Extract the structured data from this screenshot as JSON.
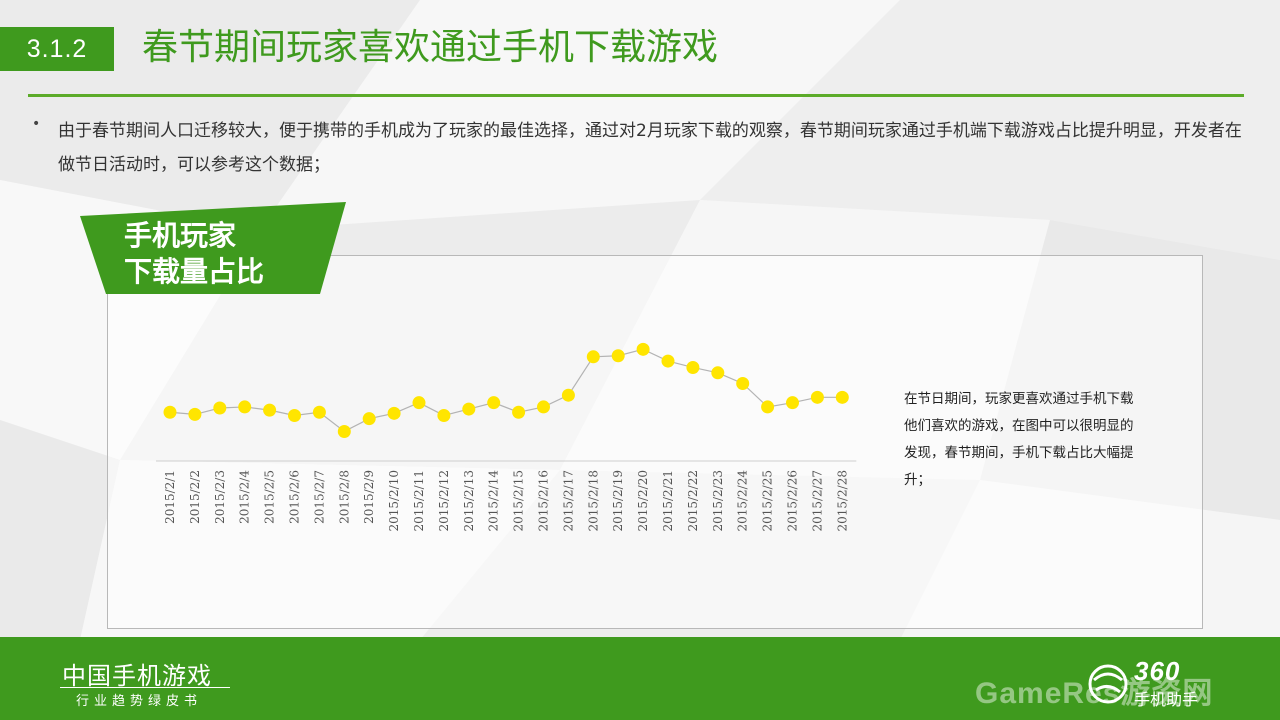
{
  "header": {
    "section_number": "3.1.2",
    "title": "春节期间玩家喜欢通过手机下载游戏"
  },
  "bullet": "由于春节期间人口迁移较大，便于携带的手机成为了玩家的最佳选择，通过对2月玩家下载的观察，春节期间玩家通过手机端下载游戏占比提升明显，开发者在做节日活动时，可以参考这个数据；",
  "badge": {
    "line1": "手机玩家",
    "line2": "下载量占比"
  },
  "side_note": "在节日期间，玩家更喜欢通过手机下载他们喜欢的游戏，在图中可以很明显的发现，春节期间，手机下载占比大幅提升；",
  "footer": {
    "title": "中国手机游戏",
    "subtitle": "行业趋势绿皮书",
    "logo_number": "360",
    "logo_text": "手机助手",
    "watermark": "GameRes游资网"
  },
  "colors": {
    "brand_green": "#3f9a1e",
    "point_yellow": "#ffe500",
    "line_gray": "#b3b3b3"
  },
  "chart_data": {
    "type": "line",
    "x": [
      "2015/2/1",
      "2015/2/2",
      "2015/2/3",
      "2015/2/4",
      "2015/2/5",
      "2015/2/6",
      "2015/2/7",
      "2015/2/8",
      "2015/2/9",
      "2015/2/10",
      "2015/2/11",
      "2015/2/12",
      "2015/2/13",
      "2015/2/14",
      "2015/2/15",
      "2015/2/16",
      "2015/2/17",
      "2015/2/18",
      "2015/2/19",
      "2015/2/20",
      "2015/2/21",
      "2015/2/22",
      "2015/2/23",
      "2015/2/24",
      "2015/2/25",
      "2015/2/26",
      "2015/2/27",
      "2015/2/28"
    ],
    "series": [
      {
        "values": [
          56,
          54,
          60,
          61,
          58,
          53,
          56,
          38,
          50,
          55,
          65,
          53,
          59,
          65,
          56,
          61,
          72,
          108,
          109,
          115,
          104,
          98,
          93,
          83,
          61,
          65,
          70,
          70
        ]
      }
    ],
    "ylim": [
      0,
      150
    ],
    "y_axis_visible": false,
    "grid": false,
    "title": "",
    "xlabel": "",
    "ylabel": ""
  }
}
